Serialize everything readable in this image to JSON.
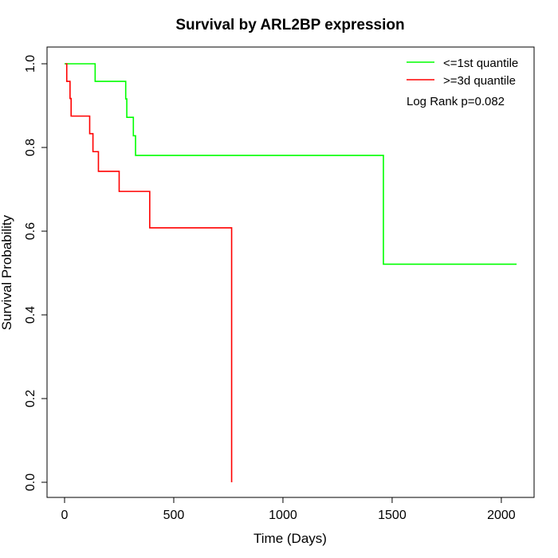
{
  "chart_data": {
    "type": "line",
    "title": "Survival by ARL2BP expression",
    "xlabel": "Time (Days)",
    "ylabel": "Survival Probability",
    "xlim": [
      0,
      2070
    ],
    "ylim": [
      0,
      1
    ],
    "x_ticks": [
      0,
      500,
      1000,
      1500,
      2000
    ],
    "y_ticks": [
      0,
      0.2,
      0.4,
      0.6,
      0.8,
      1
    ],
    "x_tick_labels": [
      "0",
      "500",
      "1000",
      "1500",
      "2000"
    ],
    "y_tick_labels": [
      "0.0",
      "0.2",
      "0.4",
      "0.6",
      "0.8",
      "1.0"
    ],
    "legend_position": "top-right",
    "annotation": "Log Rank p=0.082",
    "series": [
      {
        "name": "<=1st quantile",
        "color": "#00ff00",
        "steps": [
          [
            0,
            1.0
          ],
          [
            140,
            0.958
          ],
          [
            280,
            0.916
          ],
          [
            285,
            0.872
          ],
          [
            315,
            0.828
          ],
          [
            325,
            0.781
          ],
          [
            1460,
            0.521
          ],
          [
            2070,
            0.521
          ]
        ]
      },
      {
        "name": ">=3d quantile",
        "color": "#ff0000",
        "steps": [
          [
            5,
            1.0
          ],
          [
            10,
            0.958
          ],
          [
            25,
            0.917
          ],
          [
            30,
            0.875
          ],
          [
            115,
            0.833
          ],
          [
            130,
            0.79
          ],
          [
            155,
            0.743
          ],
          [
            250,
            0.695
          ],
          [
            390,
            0.608
          ],
          [
            765,
            0.0
          ]
        ]
      }
    ]
  }
}
